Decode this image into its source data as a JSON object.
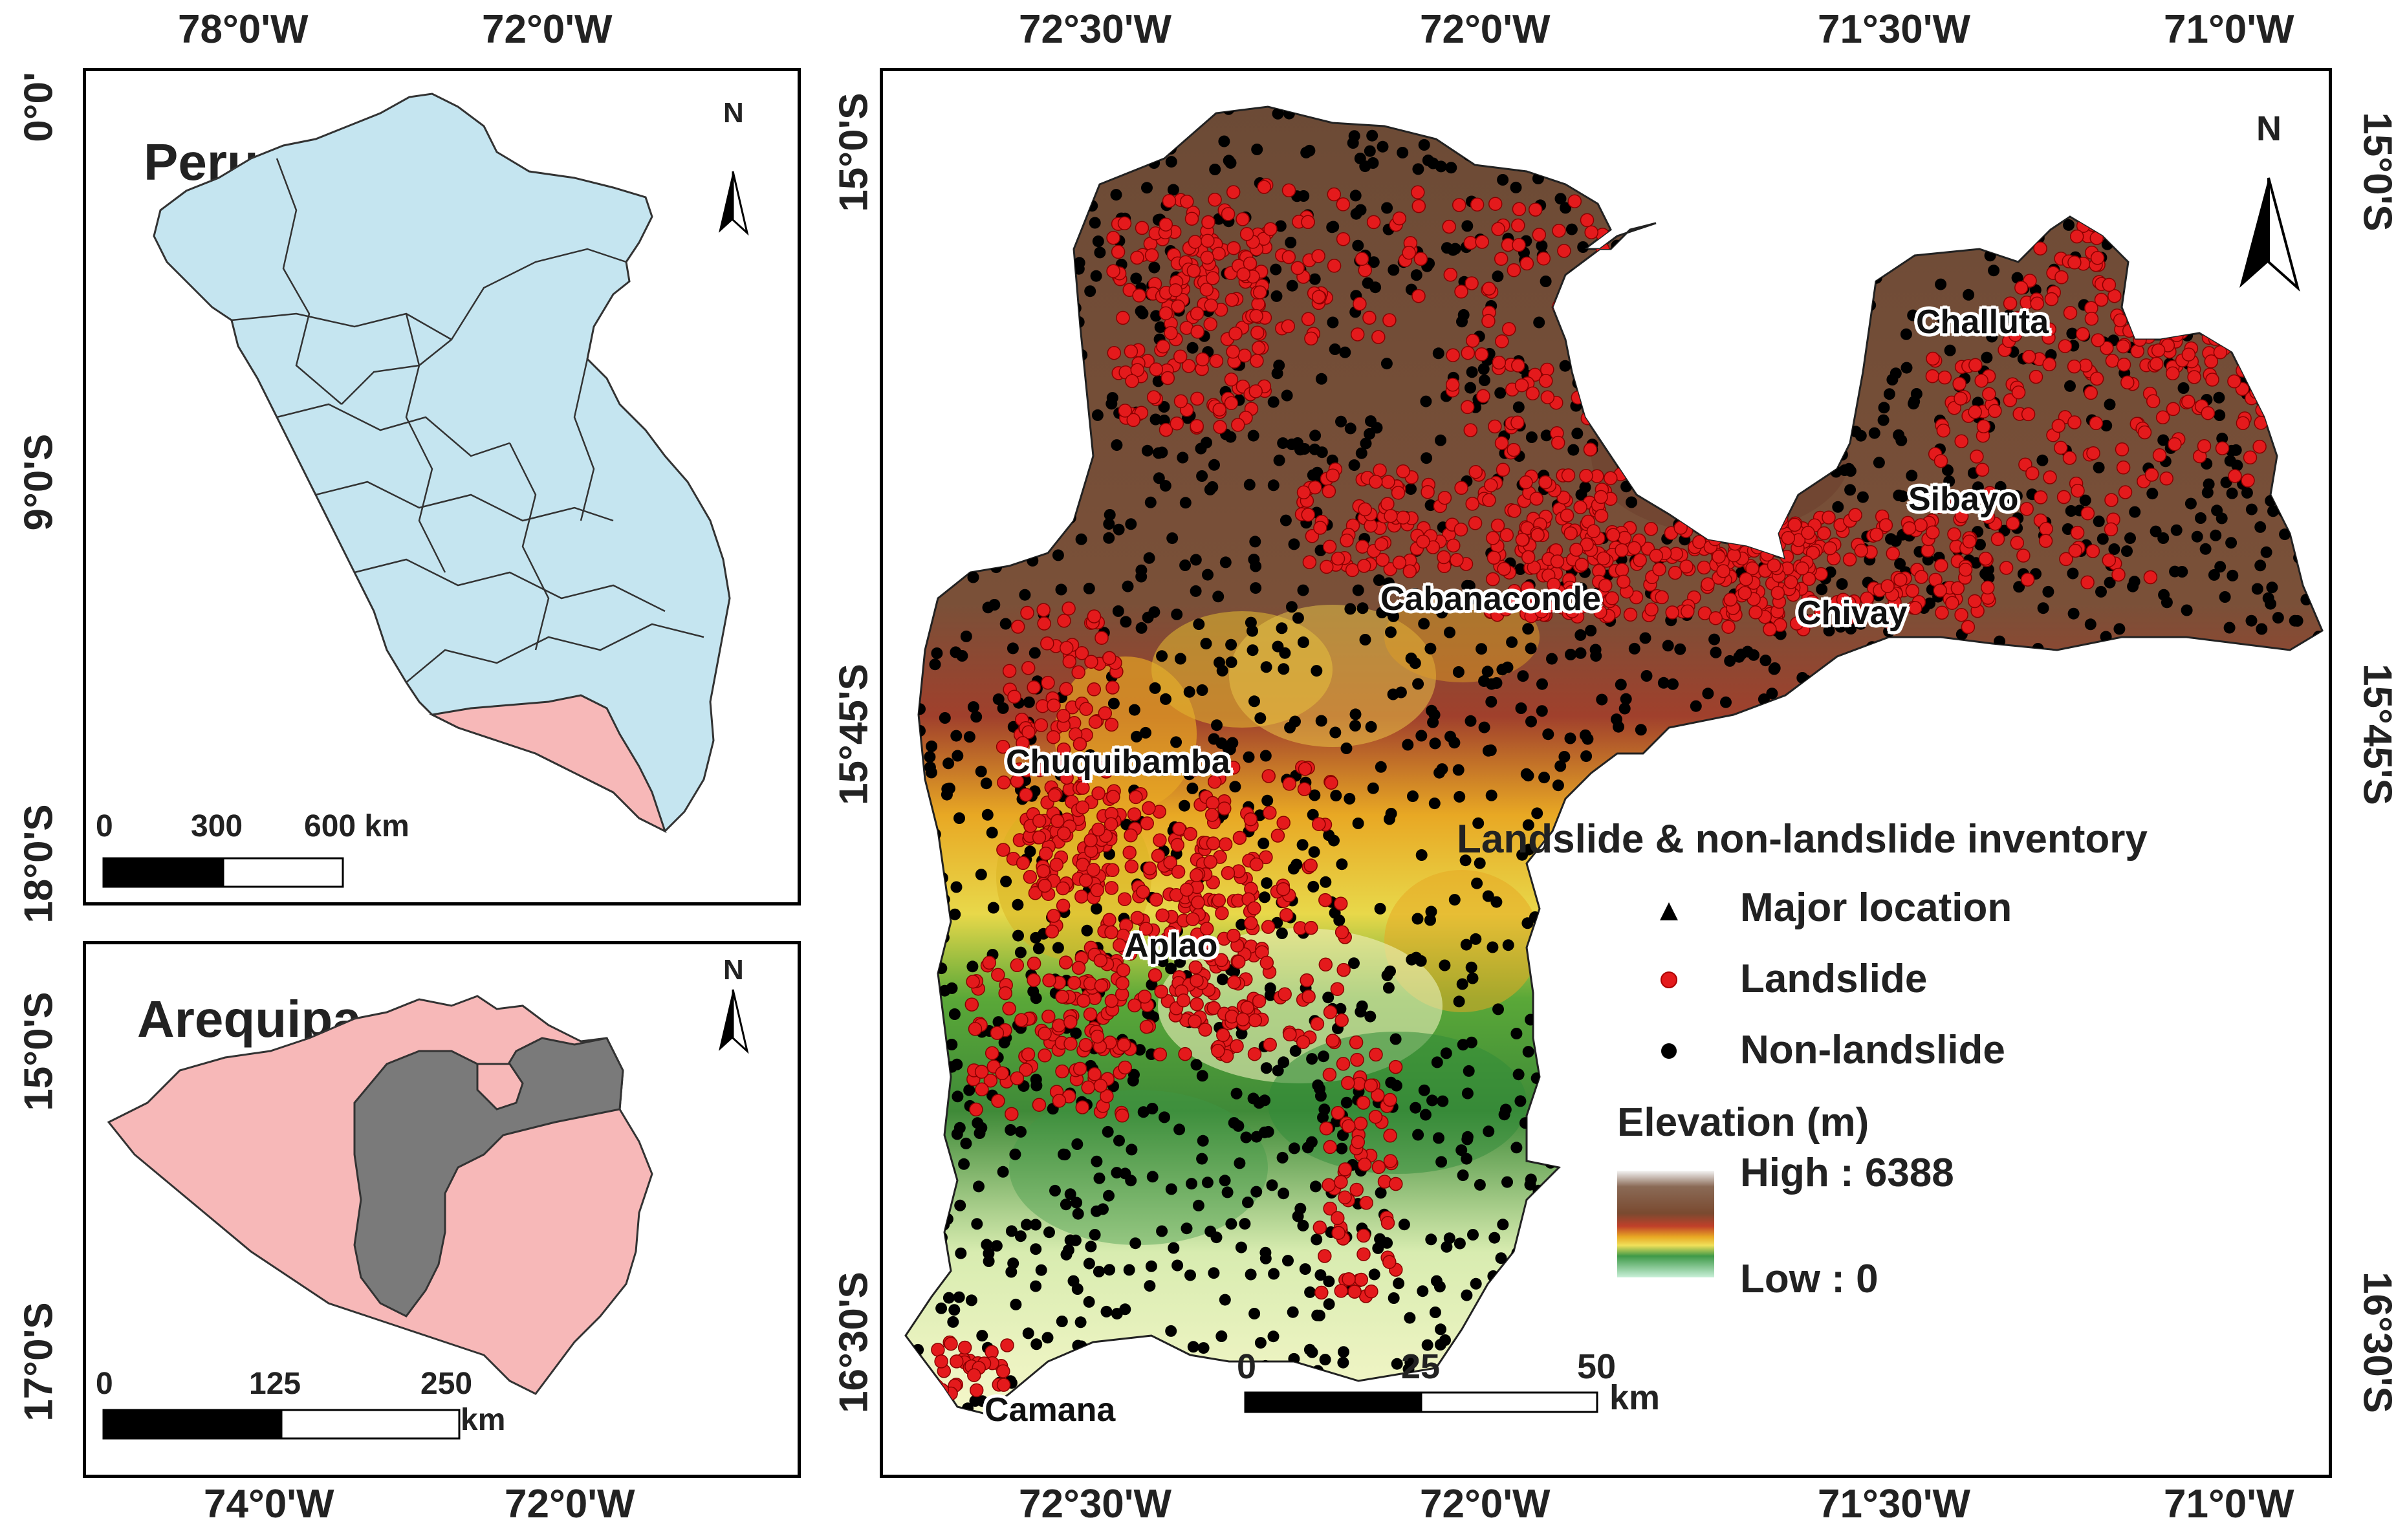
{
  "inset_peru": {
    "title": "Peru",
    "top_ticks": [
      "78°0'W",
      "72°0'W"
    ],
    "left_ticks": [
      "0°0'",
      "9°0'S",
      "18°0'S"
    ],
    "scale_labels": [
      "0",
      "300",
      "600 km"
    ],
    "north_label": "N"
  },
  "inset_arequipa": {
    "title": "Arequipa",
    "bottom_ticks": [
      "74°0'W",
      "72°0'W"
    ],
    "left_ticks": [
      "15°0'S",
      "17°0'S"
    ],
    "scale_labels": [
      "0",
      "125",
      "250"
    ],
    "scale_unit": "km",
    "north_label": "N"
  },
  "main_map": {
    "top_ticks": [
      "72°30'W",
      "72°0'W",
      "71°30'W",
      "71°0'W"
    ],
    "bottom_ticks": [
      "72°30'W",
      "72°0'W",
      "71°30'W",
      "71°0'W"
    ],
    "left_ticks": [
      "15°0'S",
      "15°45'S",
      "16°30'S"
    ],
    "right_ticks": [
      "15°0'S",
      "15°45'S",
      "16°30'S"
    ],
    "places": [
      "Challuta",
      "Sibayo",
      "Chivay",
      "Cabanaconde",
      "Chuquibamba",
      "Aplao",
      "Camana"
    ],
    "scale_labels": [
      "0",
      "25",
      "50"
    ],
    "scale_unit": "km",
    "north_label": "N"
  },
  "legend": {
    "title": "Landslide & non-landslide inventory",
    "items": [
      {
        "label": "Major location",
        "symbol": "triangle"
      },
      {
        "label": "Landslide",
        "symbol": "red-dot"
      },
      {
        "label": "Non-landslide",
        "symbol": "black-dot"
      }
    ],
    "elevation_title": "Elevation (m)",
    "elevation_high": "High : 6388",
    "elevation_low": "Low : 0"
  },
  "colors": {
    "peru_fill": "#c5e5f0",
    "arequipa_fill": "#f7b8b8",
    "study_area_fill": "#7a7a7a",
    "landslide": "#e41a1c",
    "non_landslide": "#000000",
    "elev_high": "#6b4a36",
    "elev_mid": "#e8a824",
    "elev_low": "#c8f0d8"
  }
}
